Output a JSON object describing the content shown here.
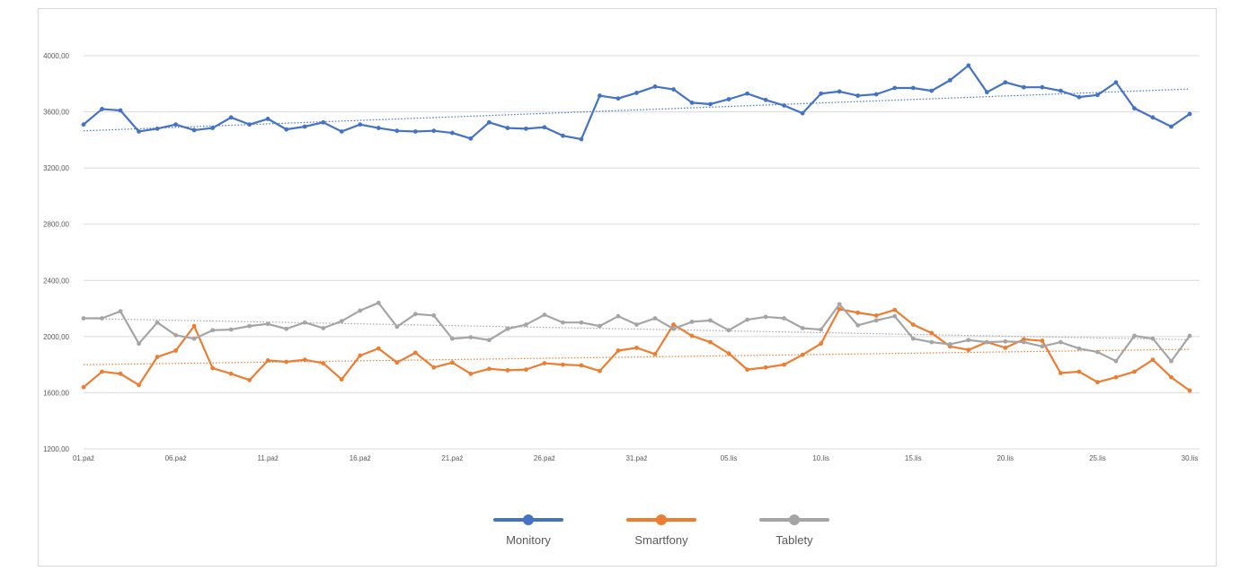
{
  "chart_data": {
    "type": "line",
    "title": "",
    "xlabel": "",
    "ylabel": "",
    "ylim": [
      1200,
      4000
    ],
    "yticks": [
      1200,
      1600,
      2000,
      2400,
      2800,
      3200,
      3600,
      4000
    ],
    "ytick_labels": [
      "1200,00",
      "1600,00",
      "2000,00",
      "2400,00",
      "2800,00",
      "3200,00",
      "3600,00",
      "4000,00"
    ],
    "x_tick_labels": [
      {
        "index": 0,
        "label": "01.paź"
      },
      {
        "index": 5,
        "label": "06.paź"
      },
      {
        "index": 10,
        "label": "11.paź"
      },
      {
        "index": 15,
        "label": "16.paź"
      },
      {
        "index": 20,
        "label": "21.paź"
      },
      {
        "index": 25,
        "label": "26.paź"
      },
      {
        "index": 30,
        "label": "31.paź"
      },
      {
        "index": 35,
        "label": "05.lis"
      },
      {
        "index": 40,
        "label": "10.lis"
      },
      {
        "index": 45,
        "label": "15.lis"
      },
      {
        "index": 50,
        "label": "20.lis"
      },
      {
        "index": 55,
        "label": "25.lis"
      },
      {
        "index": 60,
        "label": "30.lis"
      }
    ],
    "grid": true,
    "legend": "bottom",
    "trendlines": true,
    "series": [
      {
        "name": "Monitory",
        "color": "#4472C4",
        "values": [
          3510,
          3620,
          3610,
          3460,
          3480,
          3510,
          3470,
          3485,
          3560,
          3510,
          3550,
          3475,
          3495,
          3525,
          3460,
          3510,
          3485,
          3465,
          3460,
          3465,
          3450,
          3410,
          3525,
          3485,
          3480,
          3490,
          3430,
          3405,
          3715,
          3695,
          3735,
          3780,
          3760,
          3665,
          3655,
          3690,
          3730,
          3685,
          3645,
          3590,
          3730,
          3745,
          3715,
          3725,
          3770,
          3770,
          3750,
          3825,
          3930,
          3740,
          3810,
          3775,
          3775,
          3750,
          3705,
          3720,
          3810,
          3625,
          3560,
          3495,
          3585
        ]
      },
      {
        "name": "Smartfony",
        "color": "#ED7D31",
        "values": [
          1640,
          1750,
          1735,
          1655,
          1855,
          1900,
          2075,
          1775,
          1735,
          1690,
          1830,
          1820,
          1835,
          1810,
          1695,
          1865,
          1915,
          1815,
          1885,
          1780,
          1815,
          1735,
          1770,
          1760,
          1765,
          1810,
          1800,
          1795,
          1755,
          1900,
          1920,
          1875,
          2085,
          2005,
          1960,
          1880,
          1765,
          1780,
          1800,
          1870,
          1950,
          2195,
          2170,
          2150,
          2190,
          2085,
          2025,
          1930,
          1905,
          1960,
          1920,
          1980,
          1970,
          1740,
          1750,
          1675,
          1710,
          1750,
          1835,
          1710,
          1615
        ]
      },
      {
        "name": "Tablety",
        "color": "#A5A5A5",
        "values": [
          2130,
          2130,
          2180,
          1950,
          2100,
          2010,
          1985,
          2045,
          2050,
          2075,
          2090,
          2055,
          2100,
          2060,
          2110,
          2185,
          2240,
          2070,
          2160,
          2150,
          1985,
          1995,
          1975,
          2055,
          2085,
          2155,
          2100,
          2100,
          2075,
          2145,
          2085,
          2130,
          2055,
          2105,
          2115,
          2045,
          2120,
          2140,
          2130,
          2060,
          2050,
          2230,
          2080,
          2115,
          2145,
          1985,
          1960,
          1945,
          1975,
          1960,
          1965,
          1960,
          1930,
          1960,
          1915,
          1890,
          1825,
          2005,
          1985,
          1825,
          2005
        ]
      }
    ]
  }
}
